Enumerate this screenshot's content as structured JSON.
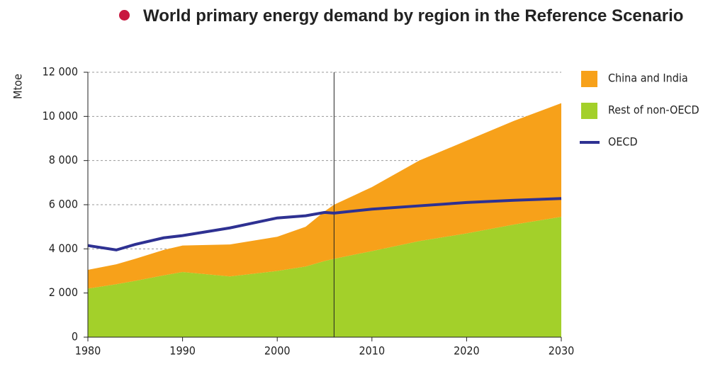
{
  "chart_data": {
    "type": "area",
    "title": "World primary energy demand by region in the Reference Scenario",
    "y_label": "Mtoe",
    "x": [
      1980,
      1983,
      1985,
      1988,
      1990,
      1995,
      2000,
      2003,
      2005,
      2006,
      2010,
      2015,
      2020,
      2025,
      2030
    ],
    "series": [
      {
        "name": "China and India",
        "color": "#f7a11a",
        "kind": "area",
        "values": [
          850,
          900,
          1000,
          1150,
          1200,
          1450,
          1550,
          1800,
          2250,
          2450,
          2900,
          3650,
          4200,
          4700,
          5150
        ]
      },
      {
        "name": "Rest of non-OECD",
        "color": "#a3d02a",
        "kind": "area",
        "values": [
          2200,
          2400,
          2550,
          2800,
          2950,
          2750,
          3000,
          3200,
          3450,
          3550,
          3900,
          4350,
          4700,
          5100,
          5450
        ]
      },
      {
        "name": "OECD",
        "color": "#2e3192",
        "kind": "line",
        "values": [
          4150,
          3950,
          4200,
          4500,
          4600,
          4950,
          5400,
          5500,
          5650,
          5620,
          5800,
          5950,
          6100,
          6200,
          6280
        ]
      }
    ],
    "stacked": true,
    "xlim": [
      1980,
      2030
    ],
    "xticks": [
      1980,
      1990,
      2000,
      2010,
      2020,
      2030
    ],
    "ylim": [
      0,
      12000
    ],
    "yticks": [
      0,
      {
        "value": 2000,
        "label": "2 000"
      },
      {
        "value": 4000,
        "label": "4 000"
      },
      {
        "value": 6000,
        "label": "6 000"
      },
      {
        "value": 8000,
        "label": "8 000"
      },
      {
        "value": 10000,
        "label": "10 000"
      },
      {
        "value": 12000,
        "label": "12 000"
      }
    ],
    "grid": true,
    "divider_x": 2006,
    "legend": "right"
  }
}
